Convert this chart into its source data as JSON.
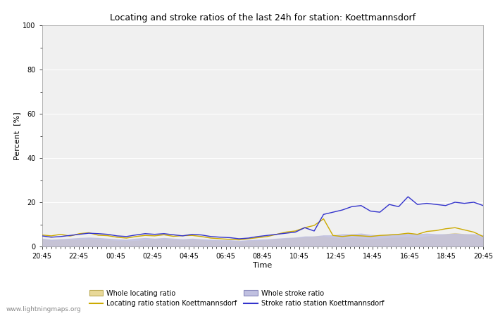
{
  "title": "Locating and stroke ratios of the last 24h for station: Koettmannsdorf",
  "xlabel": "Time",
  "ylabel": "Percent  [%]",
  "xlim": [
    0,
    48
  ],
  "ylim": [
    0,
    100
  ],
  "yticks": [
    0,
    20,
    40,
    60,
    80,
    100
  ],
  "xtick_labels": [
    "20:45",
    "22:45",
    "00:45",
    "02:45",
    "04:45",
    "06:45",
    "08:45",
    "10:45",
    "12:45",
    "14:45",
    "16:45",
    "18:45",
    "20:45"
  ],
  "watermark": "www.lightningmaps.org",
  "bg_color": "#ffffff",
  "plot_bg_color": "#f0f0f0",
  "grid_color": "#ffffff",
  "locating_line_color": "#ccaa00",
  "stroke_line_color": "#3333cc",
  "whole_locating_fill_color": "#e8d898",
  "whole_stroke_fill_color": "#c0c0e0",
  "locating_ratio": [
    5.2,
    4.8,
    5.5,
    4.7,
    5.8,
    6.2,
    5.1,
    4.9,
    4.2,
    3.8,
    4.5,
    5.0,
    4.8,
    5.3,
    4.6,
    4.9,
    5.0,
    4.5,
    3.8,
    3.5,
    3.2,
    3.0,
    3.5,
    4.0,
    4.5,
    5.5,
    6.5,
    7.0,
    8.5,
    9.5,
    12.5,
    5.0,
    4.5,
    5.0,
    4.8,
    4.5,
    5.0,
    5.2,
    5.5,
    6.0,
    5.5,
    6.8,
    7.2,
    8.0,
    8.5,
    7.5,
    6.5,
    4.5
  ],
  "stroke_ratio": [
    4.8,
    4.2,
    4.5,
    5.0,
    5.5,
    6.0,
    5.8,
    5.5,
    4.8,
    4.5,
    5.2,
    5.8,
    5.5,
    5.8,
    5.3,
    4.8,
    5.5,
    5.2,
    4.5,
    4.2,
    4.0,
    3.5,
    3.8,
    4.5,
    5.0,
    5.5,
    6.0,
    6.5,
    8.5,
    7.0,
    14.5,
    15.5,
    16.5,
    18.0,
    18.5,
    16.0,
    15.5,
    19.0,
    18.0,
    22.5,
    19.0,
    19.5,
    19.0,
    18.5,
    20.0,
    19.5,
    20.0,
    18.5
  ],
  "whole_locating": [
    3.0,
    2.8,
    3.2,
    2.8,
    3.0,
    3.2,
    3.0,
    2.8,
    2.5,
    2.3,
    2.5,
    2.8,
    3.0,
    3.2,
    2.8,
    2.8,
    3.0,
    2.8,
    2.5,
    2.3,
    2.2,
    2.0,
    2.3,
    2.5,
    2.8,
    3.2,
    3.5,
    3.8,
    4.0,
    4.5,
    4.5,
    3.8,
    3.5,
    3.8,
    3.5,
    3.2,
    3.5,
    3.8,
    4.0,
    4.2,
    3.8,
    4.5,
    5.0,
    5.5,
    6.0,
    5.5,
    5.2,
    3.5
  ],
  "whole_stroke": [
    3.5,
    3.0,
    3.2,
    3.5,
    3.8,
    4.0,
    3.8,
    3.5,
    3.2,
    3.0,
    3.5,
    3.8,
    3.5,
    3.8,
    3.5,
    3.2,
    3.5,
    3.2,
    3.0,
    2.8,
    2.8,
    2.5,
    2.8,
    3.0,
    3.2,
    3.5,
    3.8,
    4.0,
    4.5,
    4.5,
    5.0,
    5.0,
    5.5,
    5.5,
    5.8,
    5.2,
    5.0,
    5.5,
    5.5,
    6.0,
    5.5,
    5.8,
    5.5,
    5.5,
    5.8,
    5.5,
    5.5,
    5.0
  ]
}
